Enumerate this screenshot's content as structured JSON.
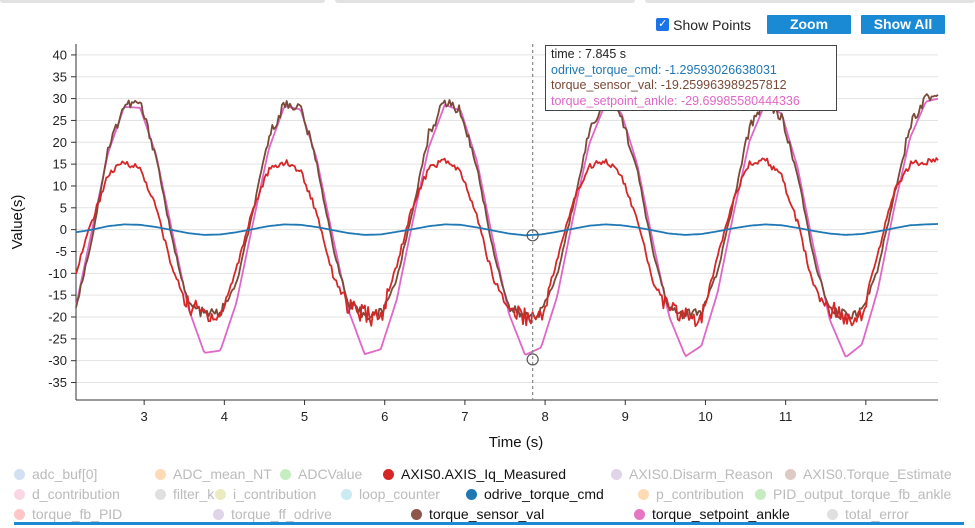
{
  "controls": {
    "show_points_label": "Show Points",
    "show_points_checked": true,
    "zoom_label": "Zoom",
    "show_all_label": "Show All"
  },
  "tooltip": {
    "time": "time : 7.845 s",
    "rows": [
      {
        "text": "odrive_torque_cmd: -1.29593026638031",
        "color": "#1f77b4"
      },
      {
        "text": "torque_sensor_val: -19.259963989257812",
        "color": "#7a4a38"
      },
      {
        "text": "torque_setpoint_ankle: -29.69985580444336",
        "color": "#e066c8"
      }
    ]
  },
  "chart_data": {
    "type": "line",
    "xlabel": "Time (s)",
    "ylabel": "Value(s)",
    "xlim": [
      2.15,
      12.9
    ],
    "ylim": [
      -39,
      42.5
    ],
    "xticks": [
      3,
      4,
      5,
      6,
      7,
      8,
      9,
      10,
      11,
      12
    ],
    "yticks": [
      -35,
      -30,
      -25,
      -20,
      -15,
      -10,
      -5,
      0,
      5,
      10,
      15,
      20,
      25,
      30,
      35,
      40
    ],
    "grid": "horizontal",
    "cursor_x": 7.845,
    "period_s": 2.0,
    "series": [
      {
        "name": "torque_setpoint_ankle",
        "color": "#e066c8",
        "x": [
          2.15,
          2.35,
          2.55,
          2.75,
          2.95,
          3.15,
          3.35,
          3.55,
          3.75,
          3.95,
          4.15,
          4.35,
          4.55,
          4.75,
          4.95,
          5.15,
          5.35,
          5.55,
          5.75,
          5.95,
          6.15,
          6.35,
          6.55,
          6.75,
          6.95,
          7.15,
          7.35,
          7.55,
          7.75,
          7.95,
          8.15,
          8.35,
          8.55,
          8.75,
          8.95,
          9.15,
          9.35,
          9.55,
          9.75,
          9.95,
          10.15,
          10.35,
          10.55,
          10.75,
          10.95,
          11.15,
          11.35,
          11.55,
          11.75,
          11.95,
          12.15,
          12.35,
          12.55,
          12.75,
          12.9
        ],
        "y": [
          -17.5,
          0.0,
          17.5,
          28.1,
          27.9,
          17.1,
          -0.5,
          -17.9,
          -28.2,
          -27.7,
          -16.8,
          0.9,
          18.2,
          28.3,
          27.5,
          16.4,
          -1.4,
          -18.6,
          -28.5,
          -27.4,
          -16.0,
          1.9,
          18.9,
          28.6,
          27.2,
          15.7,
          -2.3,
          -19.3,
          -28.7,
          -27.0,
          -15.3,
          2.8,
          19.6,
          28.8,
          26.8,
          14.9,
          -3.3,
          -20.0,
          -29.0,
          -26.6,
          -14.5,
          3.7,
          20.3,
          29.1,
          26.5,
          14.2,
          -4.2,
          -20.6,
          -29.2,
          -26.3,
          -13.8,
          4.6,
          21.0,
          29.3,
          30.0
        ]
      },
      {
        "name": "torque_sensor_val",
        "color": "#7a4a38",
        "x": [
          2.15,
          2.35,
          2.55,
          2.75,
          2.95,
          3.15,
          3.35,
          3.55,
          3.75,
          3.95,
          4.15,
          4.35,
          4.55,
          4.75,
          4.95,
          5.15,
          5.35,
          5.55,
          5.75,
          5.95,
          6.15,
          6.35,
          6.55,
          6.75,
          6.95,
          7.15,
          7.35,
          7.55,
          7.75,
          7.95,
          8.15,
          8.35,
          8.55,
          8.75,
          8.95,
          9.15,
          9.35,
          9.55,
          9.75,
          9.95,
          10.15,
          10.35,
          10.55,
          10.75,
          10.95,
          11.15,
          11.35,
          11.55,
          11.75,
          11.95,
          12.15,
          12.35,
          12.55,
          12.75,
          12.9
        ],
        "y": [
          -17.8,
          -2.0,
          18.5,
          28.5,
          29.0,
          16.8,
          -2.5,
          -17.0,
          -19.3,
          -19.0,
          -12.5,
          3.5,
          21.0,
          28.8,
          28.0,
          15.5,
          -3.5,
          -17.5,
          -19.5,
          -19.2,
          -11.5,
          4.5,
          22.0,
          29.5,
          27.0,
          14.2,
          -4.5,
          -18.0,
          -19.8,
          -18.9,
          -10.5,
          5.5,
          22.5,
          30.0,
          26.2,
          13.5,
          -5.5,
          -18.5,
          -19.4,
          -19.0,
          -9.8,
          6.5,
          23.5,
          30.2,
          25.5,
          12.5,
          -6.5,
          -18.8,
          -19.6,
          -18.7,
          -9.0,
          7.5,
          24.0,
          30.5,
          30.5
        ]
      },
      {
        "name": "AXIS0.AXIS_Iq_Measured",
        "color": "#d62728",
        "x": [
          2.15,
          2.35,
          2.55,
          2.75,
          2.95,
          3.15,
          3.35,
          3.55,
          3.75,
          3.95,
          4.15,
          4.35,
          4.55,
          4.75,
          4.95,
          5.15,
          5.35,
          5.55,
          5.75,
          5.95,
          6.15,
          6.35,
          6.55,
          6.75,
          6.95,
          7.15,
          7.35,
          7.55,
          7.75,
          7.95,
          8.15,
          8.35,
          8.55,
          8.75,
          8.95,
          9.15,
          9.35,
          9.55,
          9.75,
          9.95,
          10.15,
          10.35,
          10.55,
          10.75,
          10.95,
          11.15,
          11.35,
          11.55,
          11.75,
          11.95,
          12.15,
          12.35,
          12.55,
          12.75,
          12.9
        ],
        "y": [
          -9.5,
          2.0,
          12.5,
          15.5,
          14.0,
          5.0,
          -9.0,
          -17.5,
          -19.0,
          -20.0,
          -9.0,
          4.5,
          13.5,
          15.5,
          13.5,
          4.0,
          -10.0,
          -18.0,
          -19.5,
          -20.5,
          -8.0,
          5.5,
          14.0,
          16.0,
          13.0,
          3.0,
          -11.0,
          -18.0,
          -19.8,
          -20.0,
          -7.0,
          6.5,
          14.5,
          16.0,
          12.5,
          2.0,
          -12.0,
          -18.5,
          -19.5,
          -21.0,
          -6.0,
          7.5,
          15.0,
          16.0,
          12.0,
          1.5,
          -13.0,
          -18.5,
          -20.0,
          -19.5,
          -5.5,
          8.5,
          15.0,
          15.5,
          16.0
        ]
      },
      {
        "name": "odrive_torque_cmd",
        "color": "#1f77b4",
        "x": [
          2.15,
          2.35,
          2.55,
          2.75,
          2.95,
          3.15,
          3.35,
          3.55,
          3.75,
          3.95,
          4.15,
          4.35,
          4.55,
          4.75,
          4.95,
          5.15,
          5.35,
          5.55,
          5.75,
          5.95,
          6.15,
          6.35,
          6.55,
          6.75,
          6.95,
          7.15,
          7.35,
          7.55,
          7.75,
          7.95,
          8.15,
          8.35,
          8.55,
          8.75,
          8.95,
          9.15,
          9.35,
          9.55,
          9.75,
          9.95,
          10.15,
          10.35,
          10.55,
          10.75,
          10.95,
          11.15,
          11.35,
          11.55,
          11.75,
          11.95,
          12.15,
          12.35,
          12.55,
          12.75,
          12.9
        ],
        "y": [
          -0.6,
          0.0,
          0.8,
          1.2,
          1.1,
          0.6,
          -0.1,
          -0.8,
          -1.2,
          -1.1,
          -0.6,
          0.1,
          0.8,
          1.2,
          1.1,
          0.6,
          -0.1,
          -0.8,
          -1.2,
          -1.1,
          -0.5,
          0.1,
          0.8,
          1.2,
          1.1,
          0.5,
          -0.2,
          -0.9,
          -1.3,
          -1.1,
          -0.5,
          0.2,
          0.9,
          1.2,
          1.0,
          0.5,
          -0.2,
          -0.9,
          -1.2,
          -1.0,
          -0.4,
          0.3,
          0.9,
          1.2,
          1.0,
          0.4,
          -0.3,
          -0.9,
          -1.2,
          -1.0,
          -0.4,
          0.3,
          1.0,
          1.2,
          1.3
        ]
      }
    ],
    "legend": {
      "placement": "bottom",
      "items": [
        {
          "label": "adc_buf[0]",
          "color": "#aec7e8",
          "active": false
        },
        {
          "label": "ADC_mean_NT",
          "color": "#ffbb78",
          "active": false
        },
        {
          "label": "ADCValue",
          "color": "#98df8a",
          "active": false
        },
        {
          "label": "AXIS0.AXIS_Iq_Measured",
          "color": "#d62728",
          "active": true
        },
        {
          "label": "AXIS0.Disarm_Reason",
          "color": "#c5b0d5",
          "active": false
        },
        {
          "label": "AXIS0.Torque_Estimate",
          "color": "#c49c94",
          "active": false
        },
        {
          "label": "d_contribution",
          "color": "#f7b6d2",
          "active": false
        },
        {
          "label": "filter_k",
          "color": "#c7c7c7",
          "active": false
        },
        {
          "label": "i_contribution",
          "color": "#dbdb8d",
          "active": false
        },
        {
          "label": "loop_counter",
          "color": "#9edae5",
          "active": false
        },
        {
          "label": "odrive_torque_cmd",
          "color": "#1f77b4",
          "active": true
        },
        {
          "label": "p_contribution",
          "color": "#ffbb78",
          "active": false
        },
        {
          "label": "PID_output_torque_fb_ankle",
          "color": "#98df8a",
          "active": false
        },
        {
          "label": "torque_fb_PID",
          "color": "#ff9896",
          "active": false
        },
        {
          "label": "torque_ff_odrive",
          "color": "#c5b0d5",
          "active": false
        },
        {
          "label": "torque_sensor_val",
          "color": "#8c564b",
          "active": true
        },
        {
          "label": "torque_setpoint_ankle",
          "color": "#e377c2",
          "active": true
        },
        {
          "label": "total_error",
          "color": "#c7c7c7",
          "active": false
        }
      ]
    }
  }
}
